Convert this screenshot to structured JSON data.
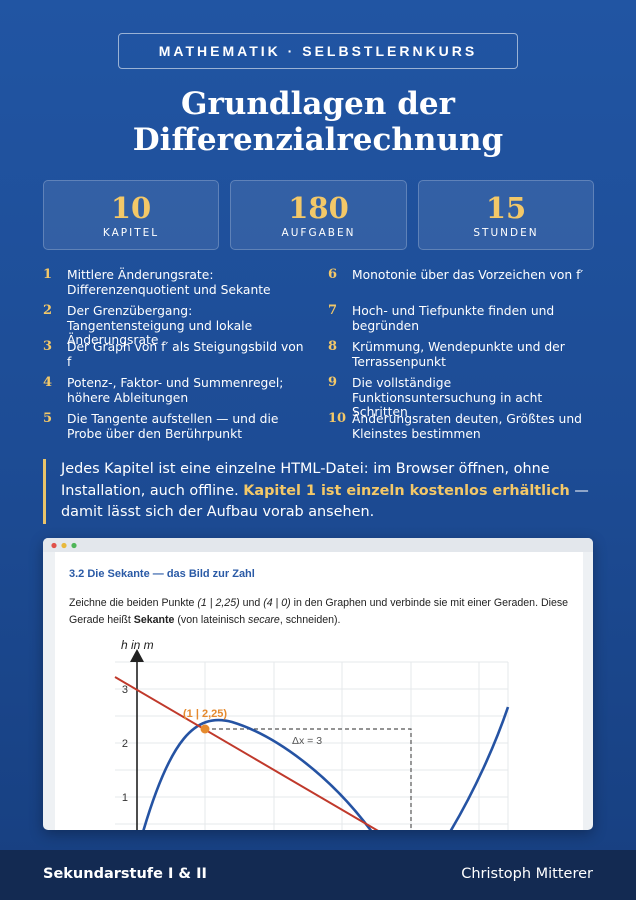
{
  "header": {
    "badge": "MATHEMATIK · SELBSTLERNKURS",
    "title_lines": [
      "Grundlagen der",
      "Differenzialrechnung"
    ]
  },
  "stats": [
    {
      "value": 10,
      "label": "KAPITEL"
    },
    {
      "value": 180,
      "label": "AUFGABEN"
    },
    {
      "value": 15,
      "label": "STUNDEN"
    }
  ],
  "chapters": [
    {
      "number": 1,
      "title": "Mittlere Änderungsrate: Differenzenquotient und Sekante"
    },
    {
      "number": 2,
      "title": "Der Grenzübergang: Tangentensteigung und lokale Änderungsrate"
    },
    {
      "number": 3,
      "title": "Der Graph von f′ als Steigungsbild von f"
    },
    {
      "number": 4,
      "title": "Potenz-, Faktor- und Summenregel; höhere Ableitungen"
    },
    {
      "number": 5,
      "title": "Die Tangente aufstellen — und die Probe über den Berührpunkt"
    },
    {
      "number": 6,
      "title": "Monotonie über das Vorzeichen von f′"
    },
    {
      "number": 7,
      "title": "Hoch- und Tiefpunkte finden und begründen"
    },
    {
      "number": 8,
      "title": "Krümmung, Wendepunkte und der Terrassenpunkt"
    },
    {
      "number": 9,
      "title": "Die vollständige Funktionsuntersuchung in acht Schritten"
    },
    {
      "number": 10,
      "title": "Änderungsraten deuten, Größtes und Kleinstes bestimmen"
    }
  ],
  "note": {
    "text": "Jedes Kapitel ist eine einzelne HTML-Datei: im Browser öffnen, ohne Installation, auch offline.",
    "highlight": "Kapitel 1 ist einzeln kostenlos erhältlich",
    "tail": "— damit lässt sich der Aufbau vorab ansehen."
  },
  "preview": {
    "heading": "3.2  Die Sekante — das Bild zur Zahl",
    "paragraph": [
      {
        "text": "Zeichne die beiden Punkte ",
        "style": "normal"
      },
      {
        "text": "(1 | 2,25)",
        "style": "italic"
      },
      {
        "text": " und ",
        "style": "normal"
      },
      {
        "text": "(4 | 0)",
        "style": "italic"
      },
      {
        "text": " in den Graphen und verbinde sie mit einer Geraden. Diese Gerade heißt ",
        "style": "normal"
      },
      {
        "text": "Sekante",
        "style": "bold"
      },
      {
        "text": " (von lateinisch ",
        "style": "normal"
      },
      {
        "text": "secare",
        "style": "italic"
      },
      {
        "text": ", schneiden).",
        "style": "normal"
      }
    ],
    "graph": {
      "y_axis_label": "h in m",
      "yticks": [
        1,
        2,
        3
      ],
      "point_label": "(1 | 2,25)",
      "delta_label": "Δx = 3"
    }
  },
  "footer": {
    "left": "Sekundarstufe I & II",
    "right": "Christoph Mitterer"
  }
}
